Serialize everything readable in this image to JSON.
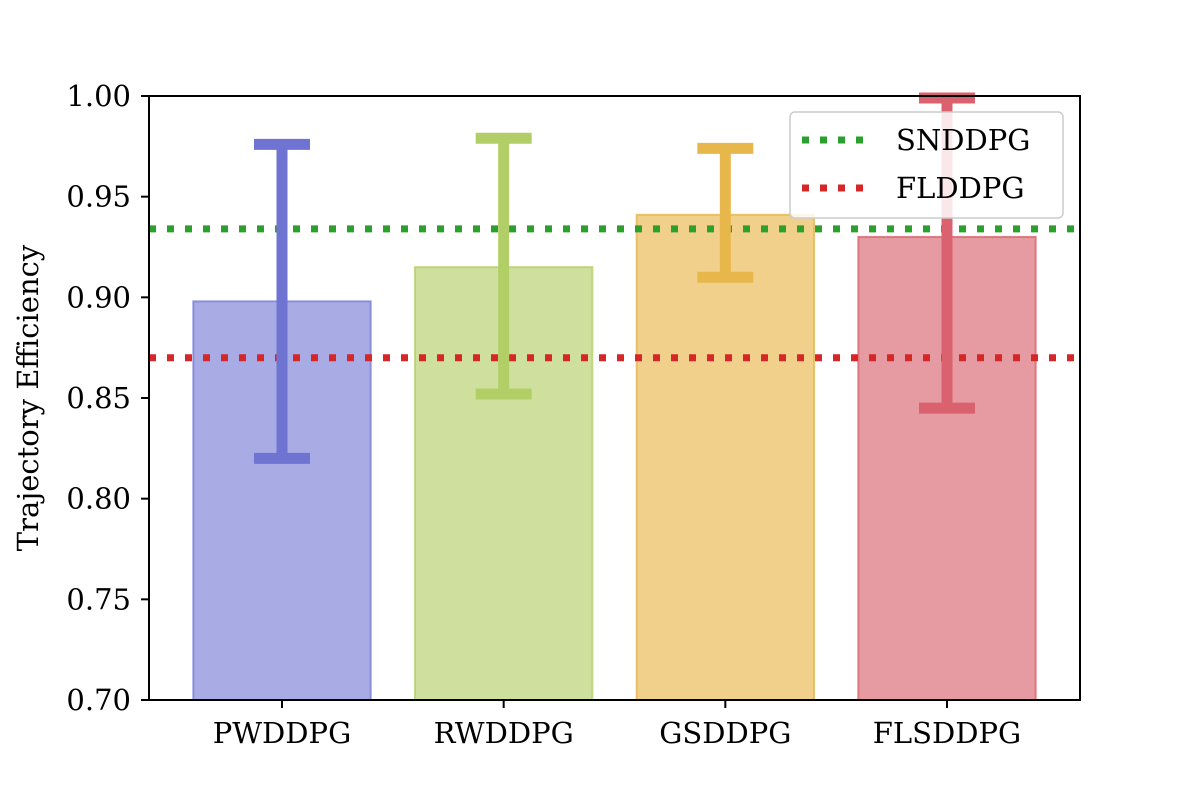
{
  "chart_data": {
    "type": "bar",
    "title": "",
    "xlabel": "",
    "ylabel": "Trajectory Efficiency",
    "ylim": [
      0.7,
      1.0
    ],
    "yticks": [
      "0.70",
      "0.75",
      "0.80",
      "0.85",
      "0.90",
      "0.95",
      "1.00"
    ],
    "grid": false,
    "categories": [
      "PWDDPG",
      "RWDDPG",
      "GSDDPG",
      "FLSDDPG"
    ],
    "values": [
      0.898,
      0.915,
      0.941,
      0.93
    ],
    "error_low": [
      0.82,
      0.852,
      0.91,
      0.845
    ],
    "error_high": [
      0.976,
      0.979,
      0.974,
      0.999
    ],
    "bar_colors": [
      "#7b7fd6",
      "#b5d06a",
      "#e8b74c",
      "#d9646f"
    ],
    "error_colors": [
      "#6f74d2",
      "#b1cf66",
      "#e8b74c",
      "#d9626e"
    ],
    "reference_lines": [
      {
        "name": "SNDDPG",
        "value": 0.934,
        "color": "#2ca02c",
        "style": "dotted"
      },
      {
        "name": "FLDDPG",
        "value": 0.87,
        "color": "#d62728",
        "style": "dotted"
      }
    ],
    "legend": {
      "placement": "top-right",
      "entries": [
        "SNDDPG",
        "FLDDPG"
      ]
    }
  }
}
